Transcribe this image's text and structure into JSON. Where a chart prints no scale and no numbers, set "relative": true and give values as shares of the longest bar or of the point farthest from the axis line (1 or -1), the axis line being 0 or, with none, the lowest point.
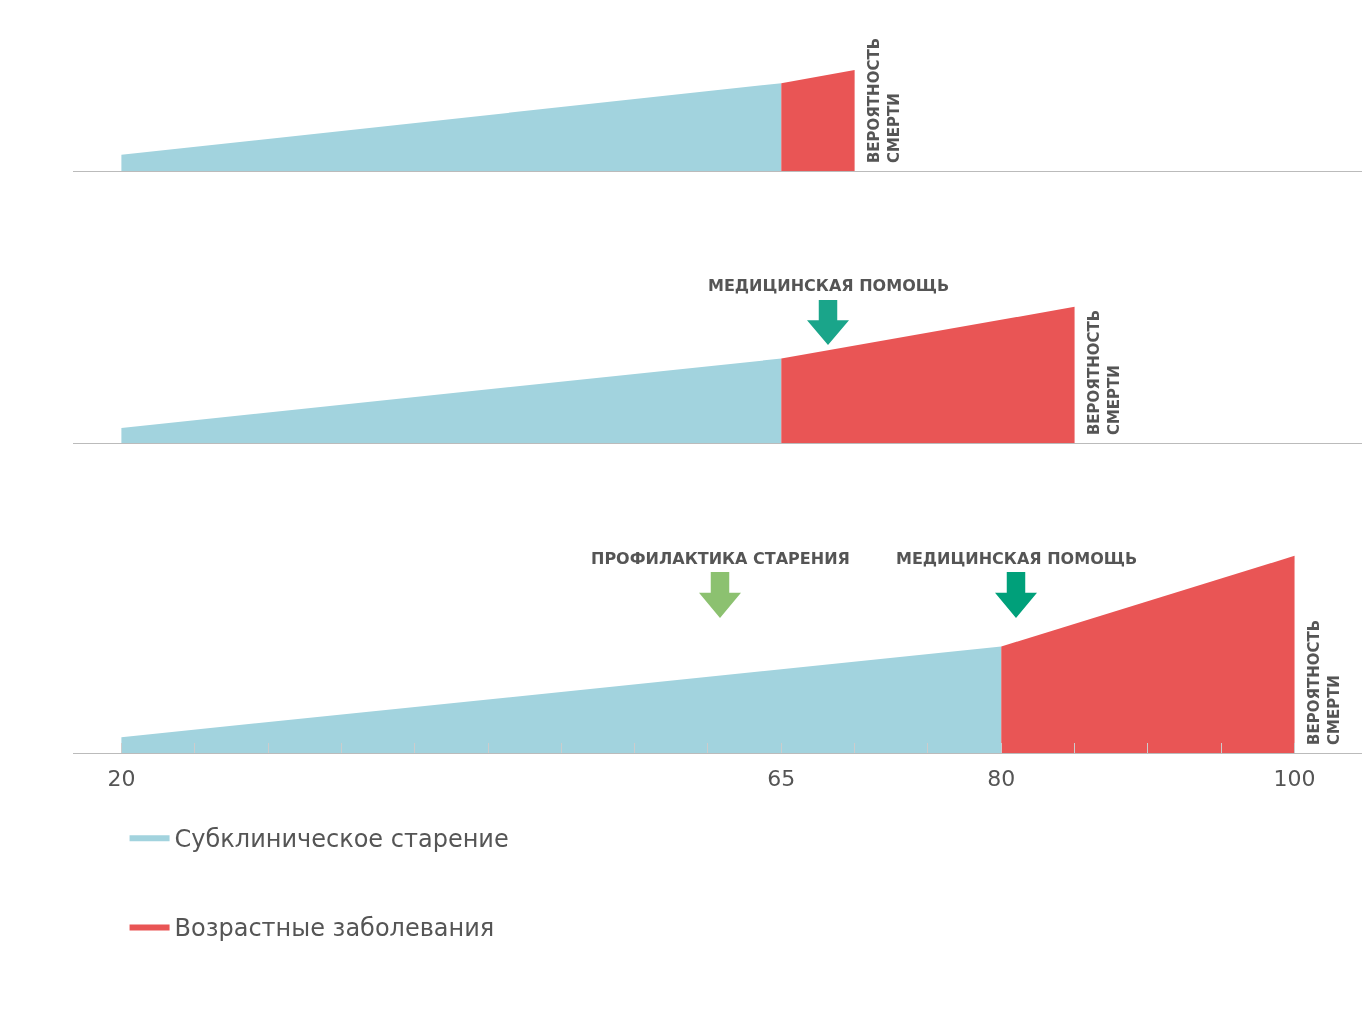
{
  "chart_data": [
    {
      "type": "area",
      "relative": true,
      "xlim": [
        16.7,
        104.6
      ],
      "tick_labels": false,
      "series": [
        {
          "color": "#a2d3de",
          "x": [
            20,
            65
          ],
          "values": [
            0.16,
            0.87
          ]
        },
        {
          "color": "#e95555",
          "x": [
            65,
            70
          ],
          "values": [
            0.87,
            1
          ]
        }
      ],
      "annotations": [
        {
          "text": "ВЕРОЯТНОСТЬ\nСМЕРТИ",
          "x": 70,
          "y": 0
        }
      ]
    },
    {
      "type": "area",
      "relative": true,
      "xlim": [
        16.7,
        104.6
      ],
      "tick_labels": false,
      "series": [
        {
          "color": "#a2d3de",
          "x": [
            20,
            65
          ],
          "values": [
            0.11,
            0.62
          ]
        },
        {
          "color": "#e95555",
          "x": [
            65,
            85
          ],
          "values": [
            0.62,
            1
          ]
        }
      ],
      "annotations": [
        "МЕДИЦИНСКАЯ ПОМОЩЬ",
        {
          "text": "ВЕРОЯТНОСТЬ\nСМЕРТИ",
          "x": 85,
          "y": 0
        }
      ]
    },
    {
      "type": "area",
      "relative": true,
      "xlim": [
        16.7,
        104.6
      ],
      "tick_labels": "x",
      "legend": "bottom left",
      "xticks": [
        20,
        {
          "value": 25,
          "label": null
        },
        {
          "value": 30,
          "label": null
        },
        {
          "value": 35,
          "label": null
        },
        {
          "value": 40,
          "label": null
        },
        {
          "value": 45,
          "label": null
        },
        {
          "value": 50,
          "label": null
        },
        {
          "value": 55,
          "label": null
        },
        {
          "value": 60,
          "label": null
        },
        65,
        {
          "value": 70,
          "label": null
        },
        {
          "value": 75,
          "label": null
        },
        80,
        {
          "value": 85,
          "label": null
        },
        {
          "value": 90,
          "label": null
        },
        {
          "value": 95,
          "label": null
        },
        100
      ],
      "series": [
        {
          "name": "Субклиническое старение",
          "color": "#a2d3de",
          "x": [
            20,
            80
          ],
          "values": [
            0.08,
            0.54
          ]
        },
        {
          "name": "Возрастные заболевания",
          "color": "#e95555",
          "x": [
            80,
            100
          ],
          "values": [
            0.54,
            1
          ]
        }
      ],
      "annotations": [
        "ПРОФИЛАКТИКА СТАРЕНИЯ",
        "МЕДИЦИНСКАЯ ПОМОЩЬ",
        {
          "text": "ВЕРОЯТНОСТЬ\nСМЕРТИ",
          "x": 100,
          "y": 0
        }
      ]
    }
  ]
}
